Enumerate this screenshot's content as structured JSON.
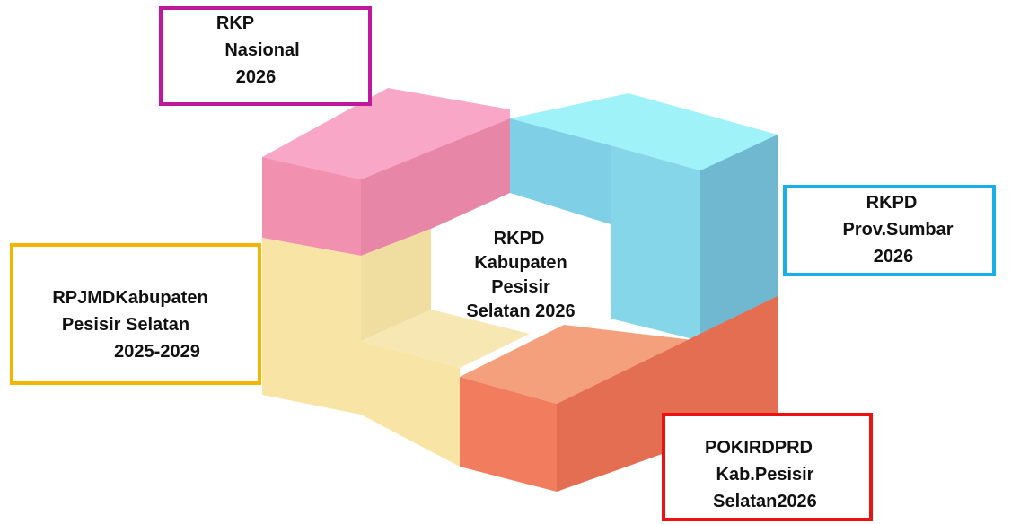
{
  "center": {
    "lines": [
      "RKPD",
      "Kabupaten",
      "Pesisir",
      "Selatan 2026"
    ]
  },
  "nodes": [
    {
      "lines": [
        "RKP",
        "Nasional",
        "2026"
      ]
    },
    {
      "lines": [
        "RKPD",
        "Prov.Sumbar",
        "2026"
      ]
    },
    {
      "lines": [
        "RPJMDKabupaten",
        "Pesisir Selatan",
        "2025-2029"
      ]
    },
    {
      "lines": [
        "POKIRDPRD",
        "Kab.Pesisir",
        "Selatan2026"
      ]
    }
  ]
}
